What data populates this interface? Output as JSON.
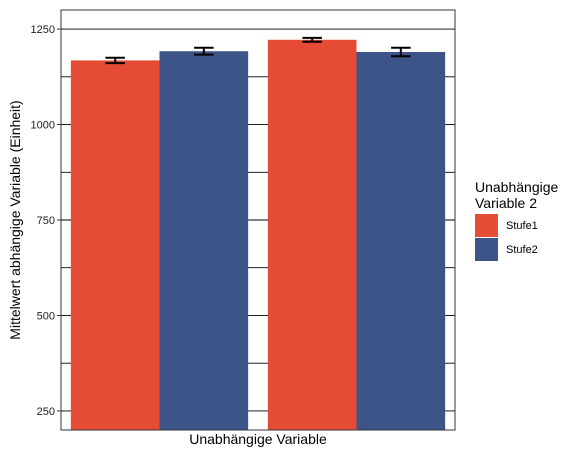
{
  "chart_data": {
    "type": "bar",
    "xlabel": "Unabhängige Variable",
    "ylabel": "Mittelwert abhängige Variable (Einheit)",
    "ylim": [
      200,
      1300
    ],
    "yticks": [
      250,
      500,
      750,
      1000,
      1250
    ],
    "grid": "horizontal major and minor lines",
    "legend": {
      "title_lines": [
        "Unabhängige",
        "Variable 2"
      ],
      "placement": "right"
    },
    "groups": 2,
    "series": [
      {
        "name": "Stufe1",
        "color": "#E64B35",
        "values": [
          1168,
          1222
        ],
        "errors": [
          7,
          5
        ]
      },
      {
        "name": "Stufe2",
        "color": "#3C5488",
        "values": [
          1192,
          1190
        ],
        "errors": [
          9,
          11
        ]
      }
    ]
  }
}
